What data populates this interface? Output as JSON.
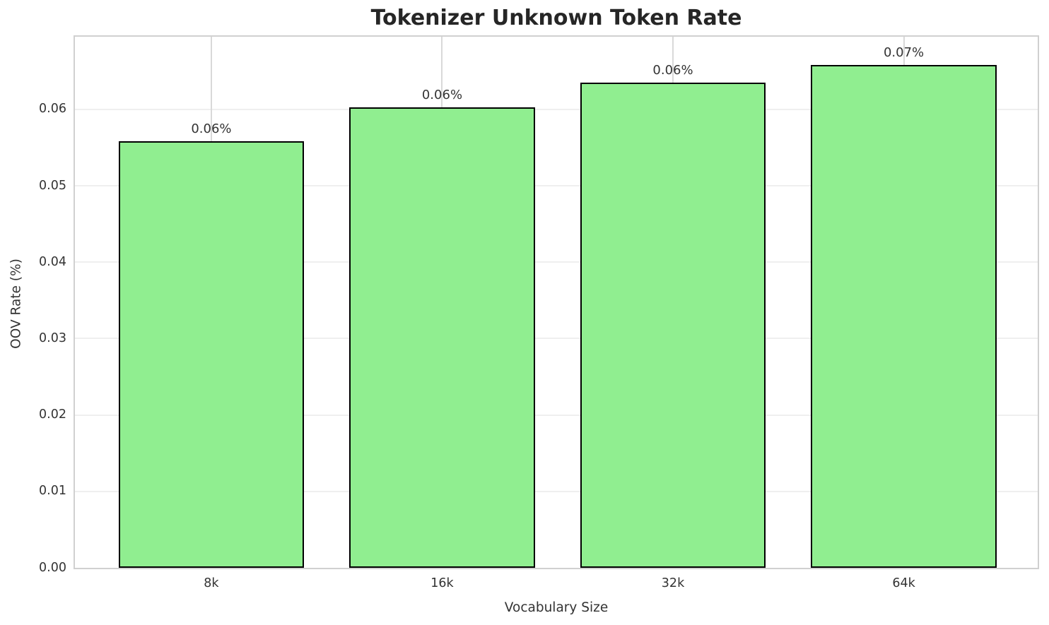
{
  "chart_data": {
    "type": "bar",
    "title": "Tokenizer Unknown Token Rate",
    "xlabel": "Vocabulary Size",
    "ylabel": "OOV Rate (%)",
    "categories": [
      "8k",
      "16k",
      "32k",
      "64k"
    ],
    "values": [
      0.0558,
      0.0603,
      0.0635,
      0.0658
    ],
    "bar_labels": [
      "0.06%",
      "0.06%",
      "0.06%",
      "0.07%"
    ],
    "ylim": [
      0,
      0.0695
    ],
    "yticks": [
      0,
      0.01,
      0.02,
      0.03,
      0.04,
      0.05,
      0.06
    ],
    "ytick_labels": [
      "0.00",
      "0.01",
      "0.02",
      "0.03",
      "0.04",
      "0.05",
      "0.06"
    ],
    "grid": true,
    "legend": "none",
    "bar_color": "#90EE90",
    "bar_edge_color": "#000000",
    "grid_color_h": "#efefef",
    "grid_color_v": "#d9d9d9"
  }
}
